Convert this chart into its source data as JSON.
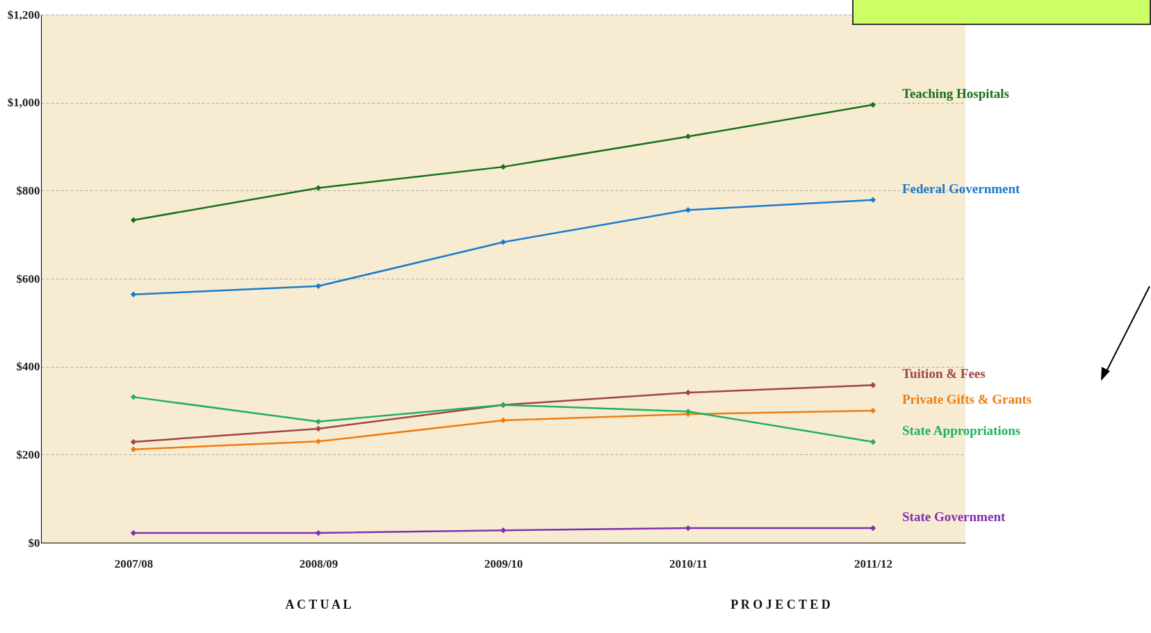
{
  "chart_data": {
    "type": "line",
    "categories": [
      "2007/08",
      "2008/09",
      "2009/10",
      "2010/11",
      "2011/12"
    ],
    "series": [
      {
        "name": "Teaching Hospitals",
        "color": "#17701c",
        "values": [
          733,
          806,
          854,
          923,
          995
        ]
      },
      {
        "name": "Federal Government",
        "color": "#1a7acc",
        "values": [
          564,
          583,
          683,
          756,
          779
        ]
      },
      {
        "name": "Tuition & Fees",
        "color": "#a04444",
        "values": [
          229,
          259,
          313,
          341,
          358
        ]
      },
      {
        "name": "Private Gifts & Grants",
        "color": "#f07c10",
        "values": [
          212,
          230,
          278,
          292,
          300
        ]
      },
      {
        "name": "State Appropriations",
        "color": "#20b060",
        "values": [
          331,
          275,
          313,
          298,
          229
        ]
      },
      {
        "name": "State Government",
        "color": "#8030b0",
        "values": [
          22,
          22,
          28,
          33,
          33
        ]
      }
    ],
    "ylim": [
      0,
      1200
    ],
    "yticks": [
      {
        "value": 0,
        "label": "$0"
      },
      {
        "value": 200,
        "label": "$200"
      },
      {
        "value": 400,
        "label": "$400"
      },
      {
        "value": 600,
        "label": "$600"
      },
      {
        "value": 800,
        "label": "$800"
      },
      {
        "value": 1000,
        "label": "$1,000"
      },
      {
        "value": 1200,
        "label": "$1,200"
      }
    ],
    "annotations": [
      "A C T U A L",
      "P R O J E C T E D"
    ],
    "grid": "y",
    "legend": false,
    "marker": "diamond",
    "line_style": "solid"
  }
}
